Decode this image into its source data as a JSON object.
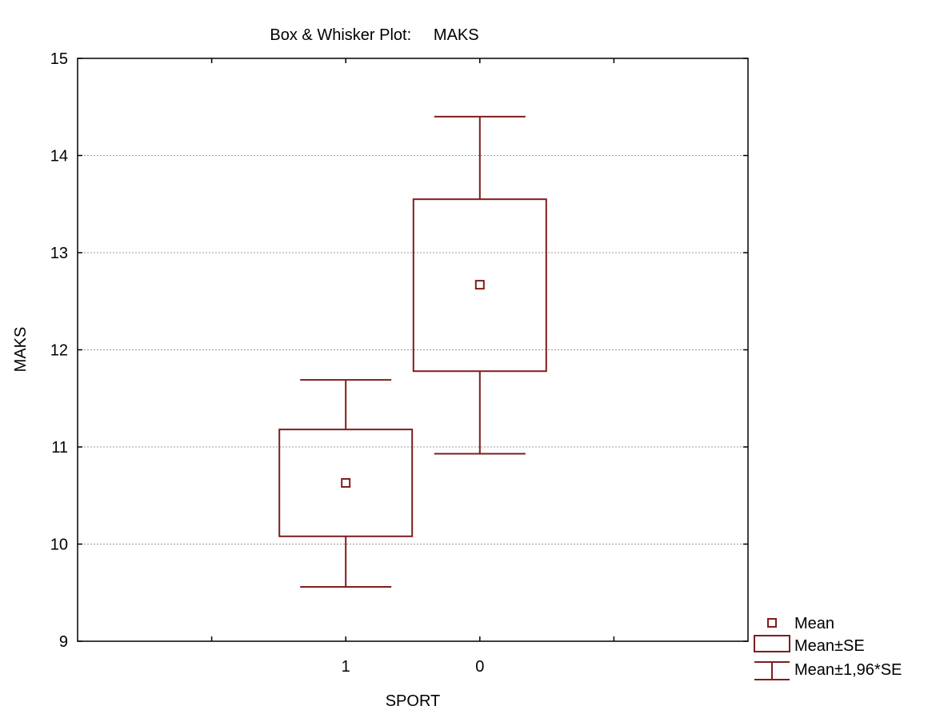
{
  "chart_data": {
    "type": "box",
    "title": "Box & Whisker Plot:     MAKS",
    "xlabel": "SPORT",
    "ylabel": "MAKS",
    "ylim": [
      9,
      15
    ],
    "yticks": [
      9,
      10,
      11,
      12,
      13,
      14,
      15
    ],
    "grid": "horizontal-dotted",
    "legend_position": "bottom-right",
    "categories": [
      "1",
      "0"
    ],
    "groups": [
      {
        "category": "1",
        "mean": 10.63,
        "se_low": 10.08,
        "se_high": 11.18,
        "ci_low": 9.56,
        "ci_high": 11.69
      },
      {
        "category": "0",
        "mean": 12.67,
        "se_low": 11.78,
        "se_high": 13.55,
        "ci_low": 10.93,
        "ci_high": 14.4
      }
    ],
    "legend": [
      {
        "symbol": "mean-square",
        "label": "Mean"
      },
      {
        "symbol": "box",
        "label": "Mean±SE"
      },
      {
        "symbol": "whisker",
        "label": "Mean±1,96*SE"
      }
    ],
    "color": "#7f1d1d"
  }
}
